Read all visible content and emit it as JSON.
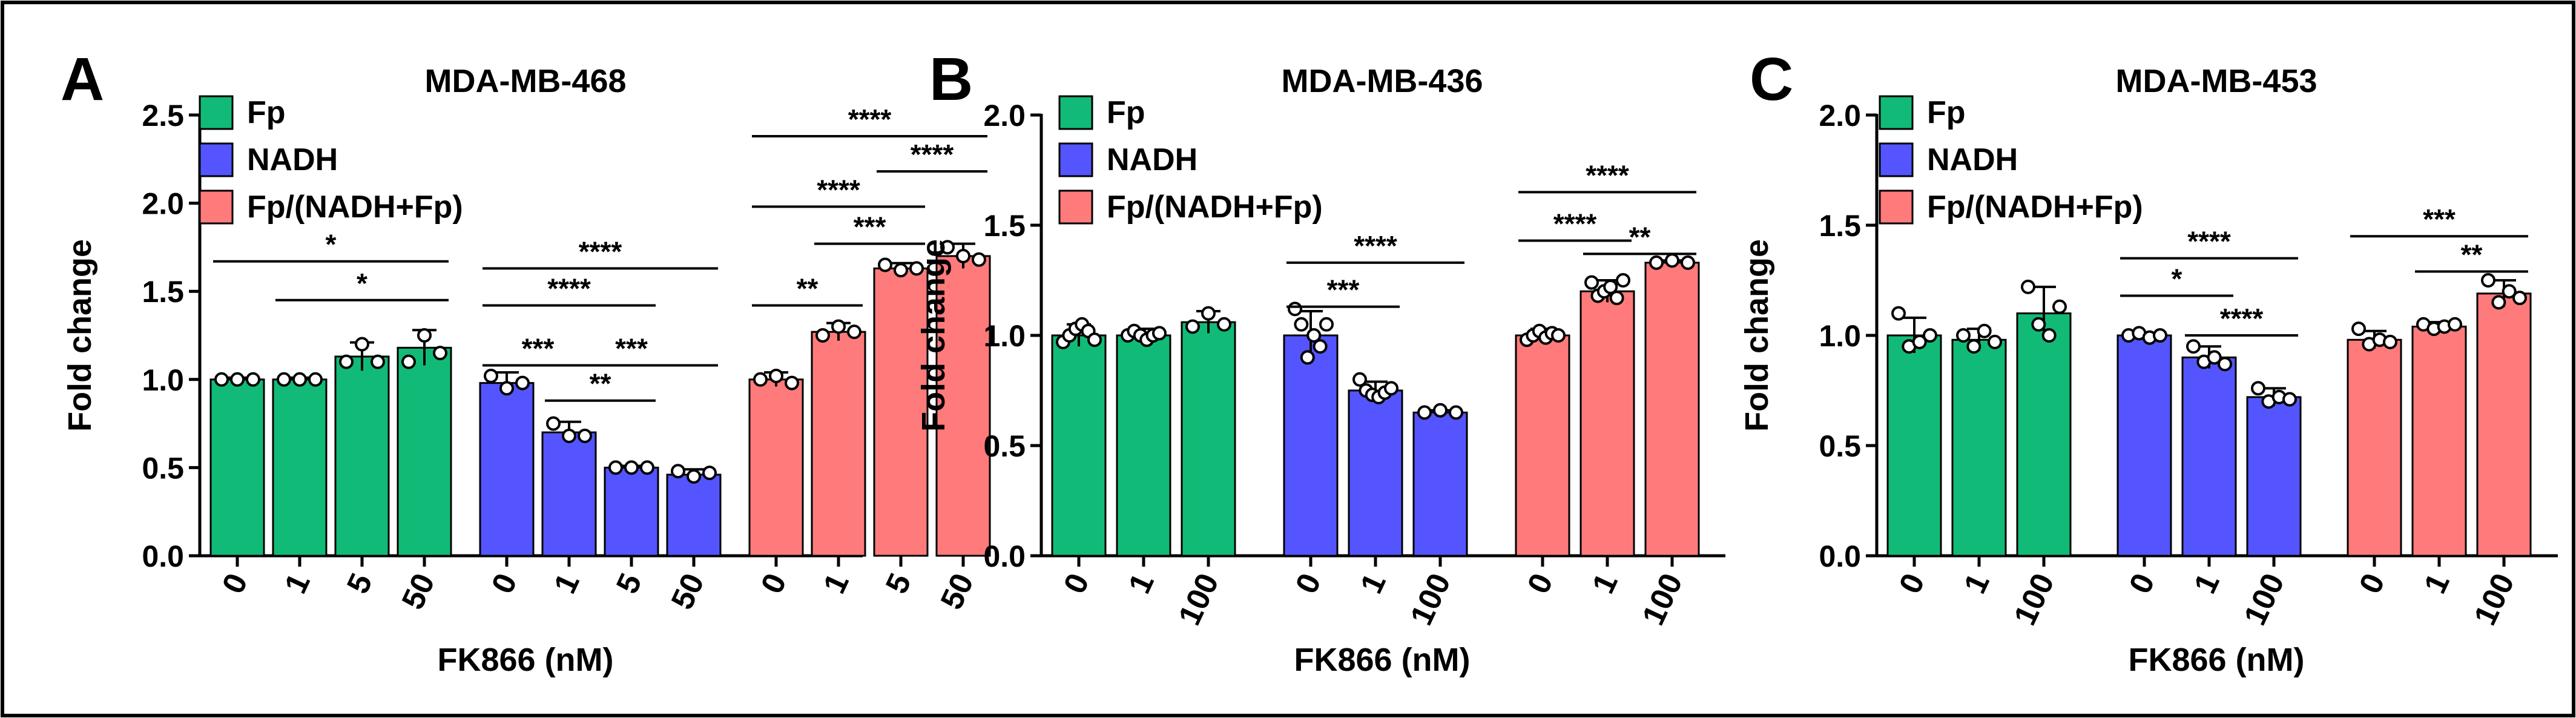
{
  "figure": {
    "border_color": "#000000"
  },
  "colors": {
    "Fp": "#11BB77",
    "NADH": "#5555FF",
    "Fp/(NADH+Fp)": "#FF7B7B"
  },
  "chart_data": [
    {
      "type": "bar",
      "panel_label": "A",
      "title": "MDA-MB-468",
      "xlabel": "FK866 (nM)",
      "ylabel": "Fold change",
      "ylim": [
        0,
        2.5
      ],
      "yticks": [
        "0.0",
        "0.5",
        "1.0",
        "1.5",
        "2.0",
        "2.5"
      ],
      "legend_position": "top-left",
      "groups": [
        {
          "name": "Fp",
          "categories": [
            "0",
            "1",
            "5",
            "50"
          ],
          "values": [
            1.0,
            1.0,
            1.13,
            1.18
          ],
          "errors": [
            0.01,
            0.01,
            0.08,
            0.1
          ],
          "points": [
            [
              1.0,
              1.0,
              1.0
            ],
            [
              1.0,
              1.0,
              1.0
            ],
            [
              1.1,
              1.2,
              1.1
            ],
            [
              1.1,
              1.25,
              1.15
            ]
          ]
        },
        {
          "name": "NADH",
          "categories": [
            "0",
            "1",
            "5",
            "50"
          ],
          "values": [
            0.98,
            0.7,
            0.5,
            0.46
          ],
          "errors": [
            0.06,
            0.06,
            0.01,
            0.03
          ],
          "points": [
            [
              1.02,
              0.95,
              0.98
            ],
            [
              0.75,
              0.68,
              0.68
            ],
            [
              0.5,
              0.5,
              0.5
            ],
            [
              0.48,
              0.45,
              0.47
            ]
          ]
        },
        {
          "name": "Fp/(NADH+Fp)",
          "categories": [
            "0",
            "1",
            "5",
            "50"
          ],
          "values": [
            1.0,
            1.27,
            1.63,
            1.7
          ],
          "errors": [
            0.04,
            0.05,
            0.03,
            0.07
          ],
          "points": [
            [
              1.0,
              1.02,
              0.98
            ],
            [
              1.25,
              1.3,
              1.27
            ],
            [
              1.65,
              1.62,
              1.63
            ],
            [
              1.75,
              1.7,
              1.68
            ]
          ]
        }
      ],
      "annotations": [
        {
          "group": 0,
          "from": 0,
          "to": 3,
          "y": 1.67,
          "text": "*"
        },
        {
          "group": 0,
          "from": 1,
          "to": 3,
          "y": 1.45,
          "text": "*"
        },
        {
          "group": 1,
          "from": 0,
          "to": 3,
          "y": 1.63,
          "text": "****"
        },
        {
          "group": 1,
          "from": 0,
          "to": 2,
          "y": 1.42,
          "text": "****"
        },
        {
          "group": 1,
          "from": 0,
          "to": 1,
          "y": 1.08,
          "text": "***"
        },
        {
          "group": 1,
          "from": 1,
          "to": 3,
          "y": 1.08,
          "text": "***"
        },
        {
          "group": 1,
          "from": 1,
          "to": 2,
          "y": 0.88,
          "text": "**"
        },
        {
          "group": 2,
          "from": 0,
          "to": 3,
          "y": 2.38,
          "text": "****"
        },
        {
          "group": 2,
          "from": 2,
          "to": 3,
          "y": 2.18,
          "text": "****"
        },
        {
          "group": 2,
          "from": 0,
          "to": 2,
          "y": 1.98,
          "text": "****"
        },
        {
          "group": 2,
          "from": 1,
          "to": 2,
          "y": 1.77,
          "text": "***"
        },
        {
          "group": 2,
          "from": 0,
          "to": 1,
          "y": 1.42,
          "text": "**"
        }
      ]
    },
    {
      "type": "bar",
      "panel_label": "B",
      "title": "MDA-MB-436",
      "xlabel": "FK866 (nM)",
      "ylabel": "Fold change",
      "ylim": [
        0,
        2.0
      ],
      "yticks": [
        "0.0",
        "0.5",
        "1.0",
        "1.5",
        "2.0"
      ],
      "legend_position": "top-left",
      "groups": [
        {
          "name": "Fp",
          "categories": [
            "0",
            "1",
            "100"
          ],
          "values": [
            1.0,
            1.0,
            1.06
          ],
          "errors": [
            0.05,
            0.03,
            0.05
          ],
          "points": [
            [
              0.97,
              1.0,
              1.03,
              1.05,
              1.02,
              0.98
            ],
            [
              1.0,
              1.02,
              1.0,
              0.98,
              1.0,
              1.01
            ],
            [
              1.04,
              1.1,
              1.05
            ]
          ]
        },
        {
          "name": "NADH",
          "categories": [
            "0",
            "1",
            "100"
          ],
          "values": [
            1.0,
            0.75,
            0.65
          ],
          "errors": [
            0.11,
            0.04,
            0.01
          ],
          "points": [
            [
              1.12,
              1.05,
              0.9,
              1.0,
              0.95,
              1.05
            ],
            [
              0.8,
              0.75,
              0.73,
              0.72,
              0.74,
              0.76
            ],
            [
              0.65,
              0.66,
              0.65
            ]
          ]
        },
        {
          "name": "Fp/(NADH+Fp)",
          "categories": [
            "0",
            "1",
            "100"
          ],
          "values": [
            1.0,
            1.2,
            1.33
          ],
          "errors": [
            0.03,
            0.05,
            0.01
          ],
          "points": [
            [
              0.98,
              1.0,
              1.02,
              0.99,
              1.01,
              1.0
            ],
            [
              1.24,
              1.18,
              1.2,
              1.22,
              1.17,
              1.25
            ],
            [
              1.33,
              1.34,
              1.33
            ]
          ]
        }
      ],
      "annotations": [
        {
          "group": 1,
          "from": 0,
          "to": 2,
          "y": 1.33,
          "text": "****"
        },
        {
          "group": 1,
          "from": 0,
          "to": 1,
          "y": 1.13,
          "text": "***"
        },
        {
          "group": 2,
          "from": 0,
          "to": 2,
          "y": 1.65,
          "text": "****"
        },
        {
          "group": 2,
          "from": 0,
          "to": 1,
          "y": 1.43,
          "text": "****"
        },
        {
          "group": 2,
          "from": 1,
          "to": 2,
          "y": 1.37,
          "text": "**"
        }
      ]
    },
    {
      "type": "bar",
      "panel_label": "C",
      "title": "MDA-MB-453",
      "xlabel": "FK866 (nM)",
      "ylabel": "Fold change",
      "ylim": [
        0,
        2.0
      ],
      "yticks": [
        "0.0",
        "0.5",
        "1.0",
        "1.5",
        "2.0"
      ],
      "legend_position": "top-left",
      "groups": [
        {
          "name": "Fp",
          "categories": [
            "0",
            "1",
            "100"
          ],
          "values": [
            1.0,
            0.98,
            1.1
          ],
          "errors": [
            0.08,
            0.05,
            0.12
          ],
          "points": [
            [
              1.1,
              0.95,
              0.97,
              1.0
            ],
            [
              1.0,
              0.95,
              1.02,
              0.97
            ],
            [
              1.22,
              1.05,
              1.0,
              1.13
            ]
          ]
        },
        {
          "name": "NADH",
          "categories": [
            "0",
            "1",
            "100"
          ],
          "values": [
            1.0,
            0.9,
            0.72
          ],
          "errors": [
            0.01,
            0.05,
            0.04
          ],
          "points": [
            [
              1.0,
              1.01,
              0.99,
              1.0
            ],
            [
              0.95,
              0.88,
              0.9,
              0.87
            ],
            [
              0.76,
              0.7,
              0.72,
              0.71
            ]
          ]
        },
        {
          "name": "Fp/(NADH+Fp)",
          "categories": [
            "0",
            "1",
            "100"
          ],
          "values": [
            0.98,
            1.04,
            1.19
          ],
          "errors": [
            0.04,
            0.02,
            0.06
          ],
          "points": [
            [
              1.03,
              0.96,
              0.98,
              0.97
            ],
            [
              1.05,
              1.03,
              1.04,
              1.05
            ],
            [
              1.25,
              1.15,
              1.2,
              1.17
            ]
          ]
        }
      ],
      "annotations": [
        {
          "group": 1,
          "from": 0,
          "to": 2,
          "y": 1.35,
          "text": "****"
        },
        {
          "group": 1,
          "from": 0,
          "to": 1,
          "y": 1.18,
          "text": "*"
        },
        {
          "group": 1,
          "from": 1,
          "to": 2,
          "y": 1.0,
          "text": "****"
        },
        {
          "group": 2,
          "from": 0,
          "to": 2,
          "y": 1.45,
          "text": "***"
        },
        {
          "group": 2,
          "from": 1,
          "to": 2,
          "y": 1.29,
          "text": "**"
        }
      ]
    }
  ]
}
